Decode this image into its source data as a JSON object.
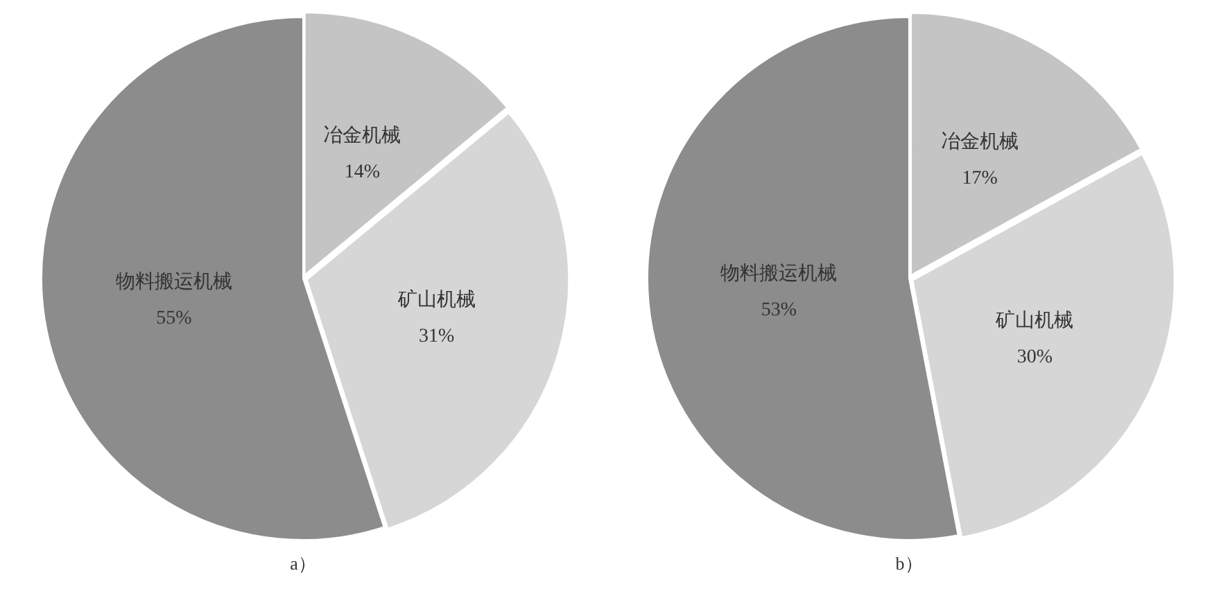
{
  "chart_data": [
    {
      "type": "pie",
      "categories": [
        "冶金机械",
        "矿山机械",
        "物料搬运机械"
      ],
      "values": [
        14,
        31,
        55
      ],
      "value_labels": [
        "14%",
        "31%",
        "55%"
      ],
      "colors": [
        "#c4c4c4",
        "#d6d6d6",
        "#8c8c8c"
      ],
      "annotations": [
        "a）"
      ]
    },
    {
      "type": "pie",
      "categories": [
        "冶金机械",
        "矿山机械",
        "物料搬运机械"
      ],
      "values": [
        17,
        30,
        53
      ],
      "value_labels": [
        "17%",
        "30%",
        "53%"
      ],
      "colors": [
        "#c4c4c4",
        "#d6d6d6",
        "#8c8c8c"
      ],
      "annotations": [
        "b）"
      ]
    }
  ]
}
